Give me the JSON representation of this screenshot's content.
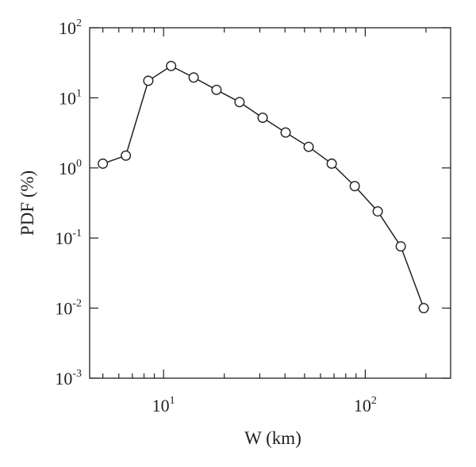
{
  "chart_data": {
    "type": "line",
    "xlabel": "W (km)",
    "ylabel": "PDF (%)",
    "x_scale": "log",
    "y_scale": "log",
    "xlim": [
      4.3,
      265
    ],
    "ylim": [
      0.001,
      100
    ],
    "x_tick_labels": [
      {
        "base": "10",
        "exp": "1",
        "value": 10
      },
      {
        "base": "10",
        "exp": "2",
        "value": 100
      }
    ],
    "y_tick_labels": [
      {
        "base": "10",
        "exp": "2",
        "value": 100
      },
      {
        "base": "10",
        "exp": "1",
        "value": 10
      },
      {
        "base": "10",
        "exp": "0",
        "value": 1
      },
      {
        "base": "10",
        "exp": "-1",
        "value": 0.1
      },
      {
        "base": "10",
        "exp": "-2",
        "value": 0.01
      },
      {
        "base": "10",
        "exp": "-3",
        "value": 0.001
      }
    ],
    "series": [
      {
        "marker": "open-circle",
        "color": "#231f20",
        "points": [
          {
            "x": 5.0,
            "y": 1.15
          },
          {
            "x": 6.5,
            "y": 1.5
          },
          {
            "x": 8.4,
            "y": 17.5
          },
          {
            "x": 10.9,
            "y": 28.5
          },
          {
            "x": 14.1,
            "y": 19.5
          },
          {
            "x": 18.3,
            "y": 13.0
          },
          {
            "x": 23.8,
            "y": 8.7
          },
          {
            "x": 31.0,
            "y": 5.2
          },
          {
            "x": 40.3,
            "y": 3.2
          },
          {
            "x": 52.4,
            "y": 2.0
          },
          {
            "x": 68.2,
            "y": 1.15
          },
          {
            "x": 88.7,
            "y": 0.55
          },
          {
            "x": 115.3,
            "y": 0.24
          },
          {
            "x": 150.0,
            "y": 0.076
          },
          {
            "x": 195.0,
            "y": 0.01
          }
        ]
      }
    ]
  }
}
